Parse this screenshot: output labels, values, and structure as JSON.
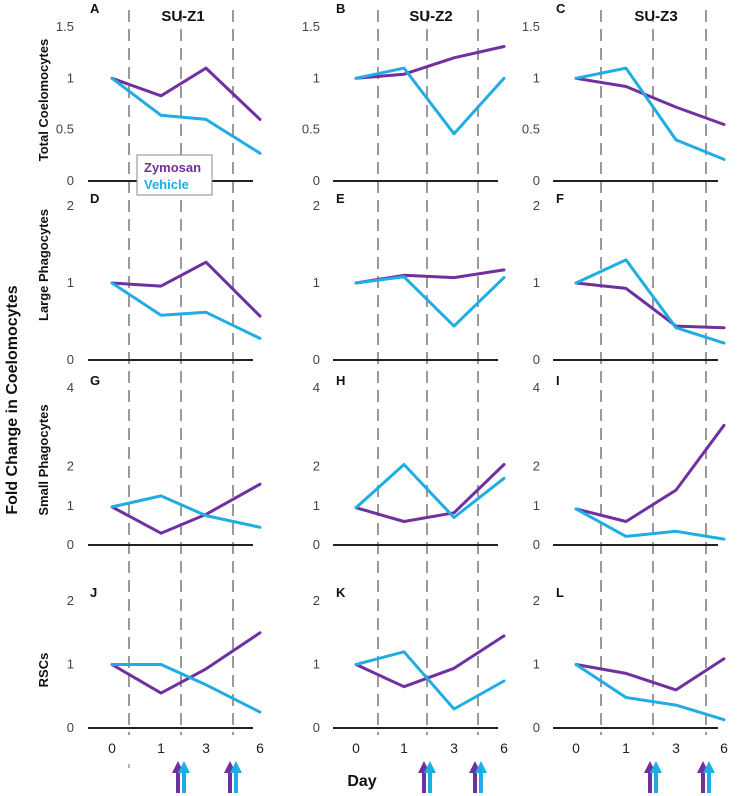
{
  "figure": {
    "y_label": "Fold Change in Coelomocytes",
    "x_label": "Day",
    "x_ticks": [
      "0",
      "1",
      "3",
      "6"
    ],
    "column_titles": [
      "SU-Z1",
      "SU-Z2",
      "SU-Z3"
    ],
    "row_labels": [
      "Total Coelomocytes",
      "Large Phagocytes",
      "Small Phagocytes",
      "RSCs"
    ],
    "legend": {
      "zymosan": "Zymosan",
      "vehicle": "Vehicle"
    },
    "colors": {
      "zymosan": "#7030A0",
      "vehicle": "#1FADE4",
      "axis": "#222222",
      "dashed": "#9a9a9a"
    },
    "arrow_icons": "purple-blue-up-arrow-icon"
  },
  "chart_data": [
    {
      "panel": "A",
      "type": "line",
      "row": "Total Coelomocytes",
      "column": "SU-Z1",
      "ylim": [
        0,
        1.5
      ],
      "yticks": [
        "0",
        "0.5",
        "1",
        "1.5"
      ],
      "series": [
        {
          "name": "Zymosan",
          "values": [
            1,
            0.83,
            1.1,
            0.6
          ]
        },
        {
          "name": "Vehicle",
          "values": [
            1,
            0.64,
            0.6,
            0.27
          ]
        }
      ]
    },
    {
      "panel": "B",
      "type": "line",
      "row": "Total Coelomocytes",
      "column": "SU-Z2",
      "ylim": [
        0,
        1.5
      ],
      "yticks": [
        "0",
        "0.5",
        "1",
        "1.5"
      ],
      "series": [
        {
          "name": "Zymosan",
          "values": [
            1,
            1.04,
            1.2,
            1.31
          ]
        },
        {
          "name": "Vehicle",
          "values": [
            1,
            1.1,
            0.46,
            1.0
          ]
        }
      ]
    },
    {
      "panel": "C",
      "type": "line",
      "row": "Total Coelomocytes",
      "column": "SU-Z3",
      "ylim": [
        0,
        1.5
      ],
      "yticks": [
        "0",
        "0.5",
        "1",
        "1.5"
      ],
      "series": [
        {
          "name": "Zymosan",
          "values": [
            1,
            0.92,
            0.72,
            0.55
          ]
        },
        {
          "name": "Vehicle",
          "values": [
            1,
            1.1,
            0.4,
            0.21
          ]
        }
      ]
    },
    {
      "panel": "D",
      "type": "line",
      "row": "Large Phagocytes",
      "column": "SU-Z1",
      "ylim": [
        0,
        2
      ],
      "yticks": [
        "0",
        "1",
        "2"
      ],
      "series": [
        {
          "name": "Zymosan",
          "values": [
            1,
            0.96,
            1.27,
            0.57
          ]
        },
        {
          "name": "Vehicle",
          "values": [
            1,
            0.58,
            0.62,
            0.28
          ]
        }
      ]
    },
    {
      "panel": "E",
      "type": "line",
      "row": "Large Phagocytes",
      "column": "SU-Z2",
      "ylim": [
        0,
        2
      ],
      "yticks": [
        "0",
        "1",
        "2"
      ],
      "series": [
        {
          "name": "Zymosan",
          "values": [
            1,
            1.1,
            1.07,
            1.17
          ]
        },
        {
          "name": "Vehicle",
          "values": [
            1,
            1.08,
            0.44,
            1.07
          ]
        }
      ]
    },
    {
      "panel": "F",
      "type": "line",
      "row": "Large Phagocytes",
      "column": "SU-Z3",
      "ylim": [
        0,
        2
      ],
      "yticks": [
        "0",
        "1",
        "2"
      ],
      "series": [
        {
          "name": "Zymosan",
          "values": [
            1,
            0.93,
            0.44,
            0.42
          ]
        },
        {
          "name": "Vehicle",
          "values": [
            1,
            1.3,
            0.42,
            0.22
          ]
        }
      ]
    },
    {
      "panel": "G",
      "type": "line",
      "row": "Small Phagocytes",
      "column": "SU-Z1",
      "ylim": [
        0,
        4
      ],
      "yticks": [
        "0",
        "1",
        "2",
        "4"
      ],
      "series": [
        {
          "name": "Zymosan",
          "values": [
            0.97,
            0.3,
            0.78,
            1.55
          ]
        },
        {
          "name": "Vehicle",
          "values": [
            0.97,
            1.25,
            0.75,
            0.45
          ]
        }
      ]
    },
    {
      "panel": "H",
      "type": "line",
      "row": "Small Phagocytes",
      "column": "SU-Z2",
      "ylim": [
        0,
        4
      ],
      "yticks": [
        "0",
        "1",
        "2",
        "4"
      ],
      "series": [
        {
          "name": "Zymosan",
          "values": [
            0.95,
            0.6,
            0.82,
            2.05
          ]
        },
        {
          "name": "Vehicle",
          "values": [
            0.95,
            2.05,
            0.7,
            1.7
          ]
        }
      ]
    },
    {
      "panel": "I",
      "type": "line",
      "row": "Small Phagocytes",
      "column": "SU-Z3",
      "ylim": [
        0,
        4
      ],
      "yticks": [
        "0",
        "1",
        "2",
        "4"
      ],
      "series": [
        {
          "name": "Zymosan",
          "values": [
            0.92,
            0.6,
            1.4,
            3.05
          ]
        },
        {
          "name": "Vehicle",
          "values": [
            0.92,
            0.22,
            0.35,
            0.15
          ]
        }
      ]
    },
    {
      "panel": "J",
      "type": "line",
      "row": "RSCs",
      "column": "SU-Z1",
      "ylim": [
        0,
        2
      ],
      "yticks": [
        "0",
        "1",
        "2"
      ],
      "series": [
        {
          "name": "Zymosan",
          "values": [
            1,
            0.55,
            0.93,
            1.5
          ]
        },
        {
          "name": "Vehicle",
          "values": [
            1,
            1.0,
            0.68,
            0.25
          ]
        }
      ]
    },
    {
      "panel": "K",
      "type": "line",
      "row": "RSCs",
      "column": "SU-Z2",
      "ylim": [
        0,
        2
      ],
      "yticks": [
        "0",
        "1",
        "2"
      ],
      "series": [
        {
          "name": "Zymosan",
          "values": [
            1,
            0.65,
            0.94,
            1.45
          ]
        },
        {
          "name": "Vehicle",
          "values": [
            1,
            1.2,
            0.3,
            0.74
          ]
        }
      ]
    },
    {
      "panel": "L",
      "type": "line",
      "row": "RSCs",
      "column": "SU-Z3",
      "ylim": [
        0,
        2
      ],
      "yticks": [
        "0",
        "1",
        "2"
      ],
      "series": [
        {
          "name": "Zymosan",
          "values": [
            1,
            0.86,
            0.6,
            1.09
          ]
        },
        {
          "name": "Vehicle",
          "values": [
            1,
            0.48,
            0.36,
            0.13
          ]
        }
      ]
    }
  ]
}
